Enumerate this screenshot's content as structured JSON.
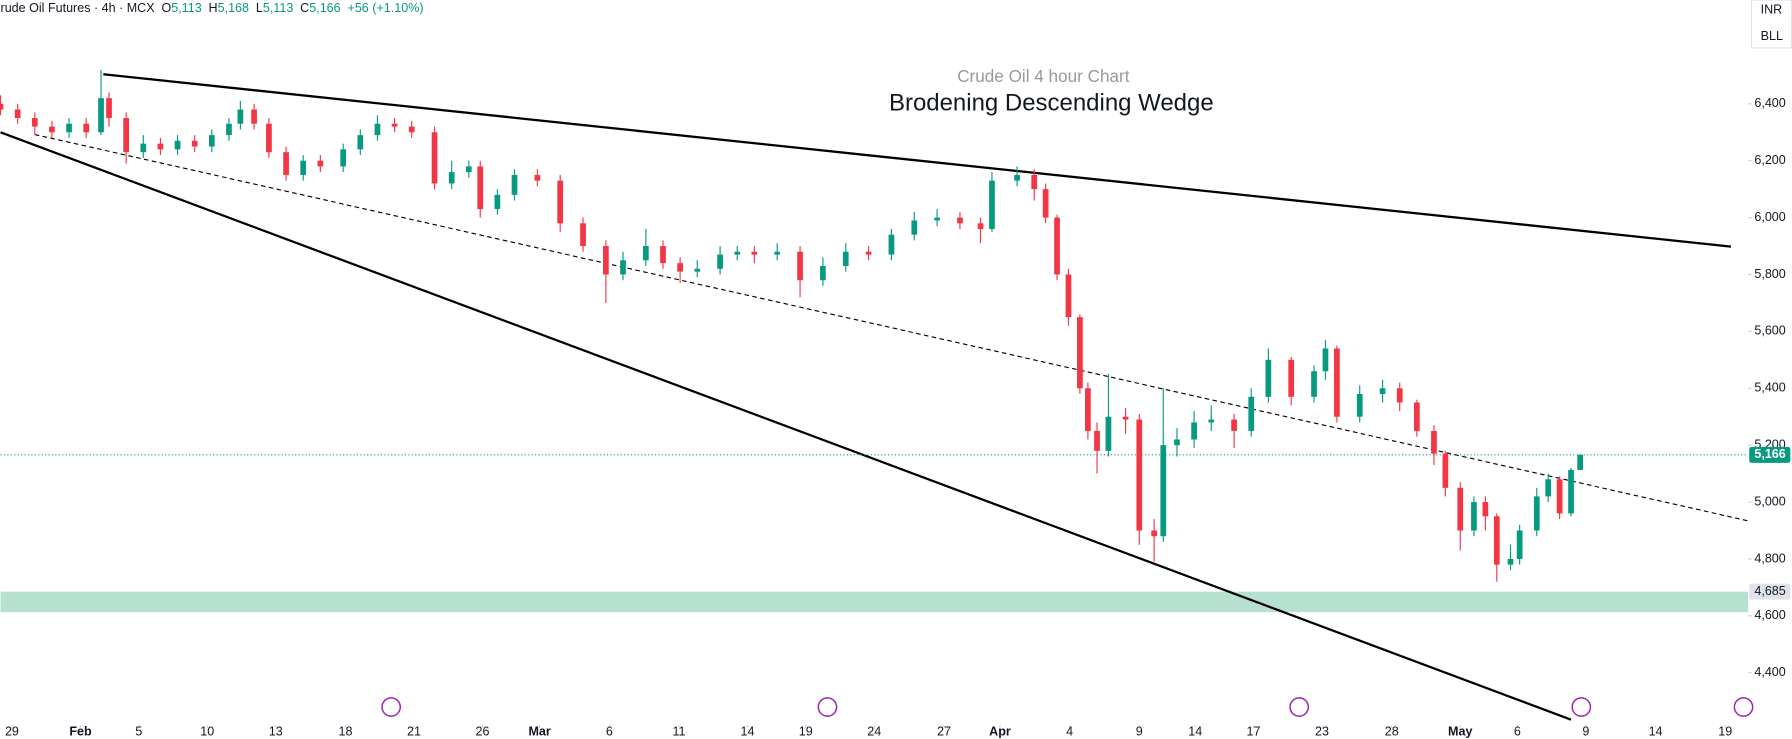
{
  "header": {
    "symbol": "rude Oil Futures · 4h · MCX",
    "o_label": "O",
    "o": "5,113",
    "h_label": "H",
    "h": "5,168",
    "l_label": "L",
    "l": "5,113",
    "c_label": "C",
    "c": "5,166",
    "change": "+56 (+1.10%)",
    "currency": "INR",
    "unit": "BLL"
  },
  "chart_data": {
    "type": "candlestick",
    "title": "Crude Oil 4 hour  Chart",
    "subtitle": "Brodening Descending Wedge",
    "up_color": "#089981",
    "down_color": "#f23645",
    "x": [
      0,
      15,
      30,
      45,
      60,
      75,
      88,
      95,
      110,
      125,
      140,
      155,
      170,
      185,
      200,
      210,
      222,
      235,
      250,
      265,
      280,
      300,
      315,
      330,
      345,
      360,
      380,
      395,
      410,
      420,
      435,
      450,
      470,
      490,
      510,
      530,
      545,
      565,
      580,
      595,
      610,
      630,
      645,
      660,
      680,
      700,
      720,
      740,
      760,
      780,
      800,
      820,
      840,
      858,
      868,
      890,
      905,
      915,
      925,
      935,
      945,
      952,
      960,
      970,
      985,
      997,
      1010,
      1018,
      1030,
      1045,
      1060,
      1080,
      1095,
      1110,
      1130,
      1150,
      1160,
      1170,
      1190,
      1210,
      1225,
      1240,
      1255,
      1265,
      1278,
      1290,
      1300,
      1310,
      1322,
      1330,
      1345,
      1355,
      1365,
      1375,
      1383
    ],
    "open": [
      6400,
      6380,
      6350,
      6320,
      6300,
      6330,
      6300,
      6420,
      6350,
      6230,
      6260,
      6240,
      6270,
      6250,
      6290,
      6330,
      6380,
      6330,
      6230,
      6150,
      6200,
      6180,
      6240,
      6290,
      6330,
      6320,
      6300,
      6120,
      6160,
      6180,
      6030,
      6080,
      6150,
      6130,
      5980,
      5900,
      5800,
      5850,
      5900,
      5840,
      5810,
      5820,
      5870,
      5880,
      5870,
      5880,
      5780,
      5830,
      5880,
      5870,
      5940,
      5990,
      6000,
      5980,
      5960,
      6130,
      6150,
      6100,
      6000,
      5800,
      5650,
      5400,
      5250,
      5180,
      5300,
      5290,
      4900,
      4880,
      5200,
      5220,
      5280,
      5290,
      5250,
      5370,
      5500,
      5370,
      5460,
      5540,
      5300,
      5380,
      5400,
      5350,
      5250,
      5170,
      5050,
      4900,
      5000,
      4950,
      4780,
      4800,
      4900,
      5020,
      5080,
      4960,
      5113
    ],
    "close": [
      6380,
      6350,
      6320,
      6300,
      6330,
      6300,
      6420,
      6350,
      6230,
      6260,
      6240,
      6270,
      6250,
      6290,
      6330,
      6380,
      6330,
      6230,
      6150,
      6200,
      6180,
      6240,
      6290,
      6330,
      6320,
      6300,
      6120,
      6160,
      6180,
      6030,
      6080,
      6150,
      6130,
      5980,
      5900,
      5800,
      5850,
      5900,
      5840,
      5810,
      5820,
      5870,
      5880,
      5870,
      5880,
      5780,
      5830,
      5880,
      5870,
      5940,
      5990,
      6000,
      5980,
      5960,
      6130,
      6150,
      6100,
      6000,
      5800,
      5650,
      5400,
      5250,
      5180,
      5300,
      5290,
      4900,
      4880,
      5200,
      5220,
      5280,
      5290,
      5250,
      5370,
      5500,
      5370,
      5460,
      5540,
      5300,
      5380,
      5400,
      5350,
      5250,
      5170,
      5050,
      4900,
      5000,
      4950,
      4780,
      4800,
      4900,
      5020,
      5080,
      4960,
      5113,
      5166
    ],
    "high": [
      6430,
      6400,
      6370,
      6340,
      6350,
      6350,
      6520,
      6440,
      6370,
      6290,
      6280,
      6290,
      6290,
      6310,
      6350,
      6410,
      6400,
      6350,
      6250,
      6220,
      6220,
      6260,
      6310,
      6360,
      6350,
      6340,
      6320,
      6200,
      6200,
      6200,
      6100,
      6170,
      6170,
      6150,
      6000,
      5920,
      5880,
      5960,
      5920,
      5860,
      5850,
      5900,
      5900,
      5900,
      5910,
      5900,
      5860,
      5910,
      5900,
      5960,
      6020,
      6030,
      6020,
      6000,
      6160,
      6180,
      6170,
      6120,
      6010,
      5820,
      5660,
      5420,
      5280,
      5450,
      5330,
      5310,
      4940,
      5400,
      5260,
      5320,
      5340,
      5310,
      5400,
      5540,
      5510,
      5480,
      5570,
      5550,
      5410,
      5430,
      5420,
      5360,
      5270,
      5180,
      5070,
      5020,
      5020,
      4960,
      4850,
      4920,
      5050,
      5100,
      5090,
      5120,
      5168
    ],
    "low": [
      6360,
      6330,
      6290,
      6280,
      6280,
      6280,
      6290,
      6320,
      6190,
      6210,
      6220,
      6220,
      6230,
      6230,
      6270,
      6310,
      6310,
      6210,
      6130,
      6130,
      6160,
      6160,
      6220,
      6270,
      6300,
      6280,
      6100,
      6100,
      6140,
      6000,
      6010,
      6060,
      6110,
      5950,
      5880,
      5700,
      5780,
      5830,
      5820,
      5770,
      5790,
      5800,
      5850,
      5840,
      5850,
      5720,
      5760,
      5810,
      5850,
      5850,
      5920,
      5970,
      5960,
      5910,
      5950,
      6110,
      6060,
      5980,
      5780,
      5620,
      5380,
      5220,
      5100,
      5160,
      5240,
      4850,
      4790,
      4860,
      5160,
      5190,
      5250,
      5190,
      5230,
      5350,
      5340,
      5350,
      5430,
      5280,
      5280,
      5350,
      5320,
      5230,
      5130,
      5020,
      4830,
      4880,
      4900,
      4720,
      4760,
      4780,
      4880,
      5000,
      4940,
      4950,
      5113
    ],
    "xlim": [
      0,
      1530
    ],
    "ylim": [
      4167,
      6765
    ],
    "xticks": [
      {
        "value": 10,
        "label": "29"
      },
      {
        "value": 70,
        "label": "Feb"
      },
      {
        "value": 121,
        "label": "5"
      },
      {
        "value": 181,
        "label": "10"
      },
      {
        "value": 241,
        "label": "13"
      },
      {
        "value": 302,
        "label": "18"
      },
      {
        "value": 362,
        "label": "21"
      },
      {
        "value": 422,
        "label": "26"
      },
      {
        "value": 472,
        "label": "Mar"
      },
      {
        "value": 533,
        "label": "6"
      },
      {
        "value": 594,
        "label": "11"
      },
      {
        "value": 654,
        "label": "14"
      },
      {
        "value": 705,
        "label": "19"
      },
      {
        "value": 765,
        "label": "24"
      },
      {
        "value": 826,
        "label": "27"
      },
      {
        "value": 875,
        "label": "Apr"
      },
      {
        "value": 936,
        "label": "4"
      },
      {
        "value": 997,
        "label": "9"
      },
      {
        "value": 1046,
        "label": "14"
      },
      {
        "value": 1097,
        "label": "17"
      },
      {
        "value": 1157,
        "label": "23"
      },
      {
        "value": 1218,
        "label": "28"
      },
      {
        "value": 1278,
        "label": "May"
      },
      {
        "value": 1328,
        "label": "6"
      },
      {
        "value": 1388,
        "label": "9"
      },
      {
        "value": 1449,
        "label": "14"
      },
      {
        "value": 1510,
        "label": "19"
      }
    ],
    "yticks": [
      {
        "value": 6400,
        "label": "6,400"
      },
      {
        "value": 6200,
        "label": "6,200"
      },
      {
        "value": 6000,
        "label": "6,000"
      },
      {
        "value": 5800,
        "label": "5,800"
      },
      {
        "value": 5600,
        "label": "5,600"
      },
      {
        "value": 5400,
        "label": "5,400"
      },
      {
        "value": 5200,
        "label": "5,200"
      },
      {
        "value": 5000,
        "label": "5,000"
      },
      {
        "value": 4800,
        "label": "4,800"
      },
      {
        "value": 4600,
        "label": "4,600"
      },
      {
        "value": 4400,
        "label": "4,400"
      }
    ],
    "trendlines": [
      {
        "x": [
          90,
          1515
        ],
        "y": [
          6504,
          5898
        ],
        "style": "solid"
      },
      {
        "x": [
          0,
          1375
        ],
        "y": [
          6300,
          4235
        ],
        "style": "solid"
      },
      {
        "x": [
          30,
          1530
        ],
        "y": [
          6292,
          4934
        ],
        "style": "dashed"
      }
    ],
    "last_price": {
      "value": 5166,
      "label": "5,166",
      "color": "#089981"
    },
    "zone": {
      "from": 4613,
      "to": 4685,
      "label": "4,685",
      "color": "#b2dfcd"
    }
  }
}
